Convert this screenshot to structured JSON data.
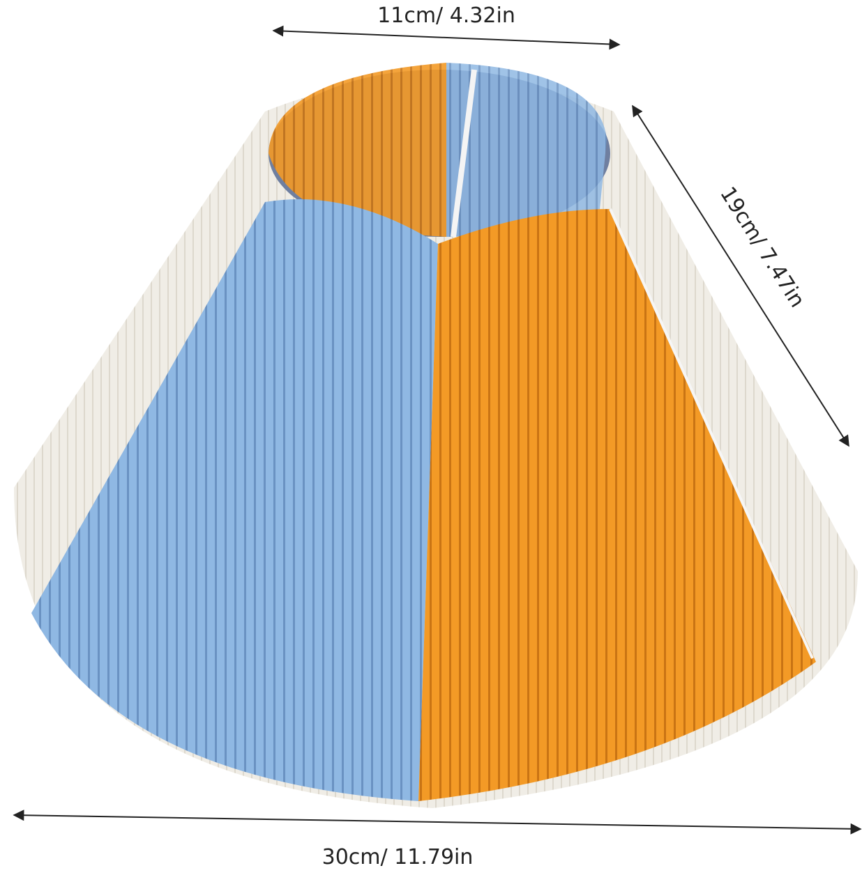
{
  "dimensions": {
    "top": "11cm/ 4.32in",
    "side": "19cm/ 7.47in",
    "bottom": "30cm/ 11.79in"
  }
}
